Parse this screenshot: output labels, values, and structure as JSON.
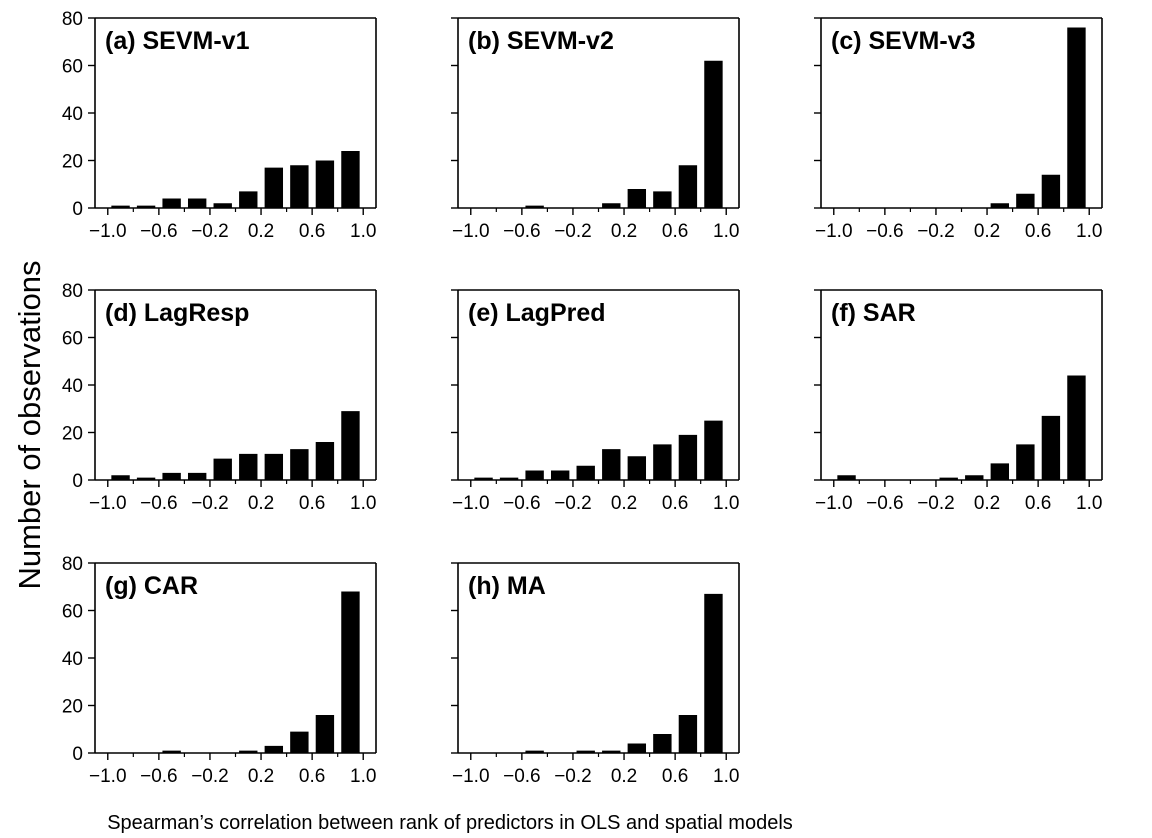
{
  "ylabel": "Number of observations",
  "xlabel": "Spearman’s correlation between rank of predictors in OLS and spatial models",
  "colors": {
    "bar": "#000000",
    "axis": "#000000",
    "background": "#ffffff"
  },
  "chart_data": [
    {
      "type": "bar",
      "title": "(a) SEVM-v1",
      "x": [
        -0.9,
        -0.7,
        -0.5,
        -0.3,
        -0.1,
        0.1,
        0.3,
        0.5,
        0.7,
        0.9
      ],
      "values": [
        1,
        1,
        4,
        4,
        2,
        7,
        17,
        18,
        20,
        24
      ],
      "xlim": [
        -1.1,
        1.1
      ],
      "ylim": [
        0,
        80
      ],
      "xticks": [
        -1.0,
        -0.6,
        -0.2,
        0.2,
        0.6,
        1.0
      ],
      "xtick_labels": [
        "−1.0",
        "−0.6",
        "−0.2",
        "0.2",
        "0.6",
        "1.0"
      ],
      "yticks": [
        0,
        20,
        40,
        60,
        80
      ],
      "ytick_labels": [
        "0",
        "20",
        "40",
        "60",
        "80"
      ]
    },
    {
      "type": "bar",
      "title": "(b) SEVM-v2",
      "x": [
        -0.9,
        -0.7,
        -0.5,
        -0.3,
        -0.1,
        0.1,
        0.3,
        0.5,
        0.7,
        0.9
      ],
      "values": [
        0,
        0,
        1,
        0,
        0,
        2,
        8,
        7,
        18,
        62
      ],
      "xlim": [
        -1.1,
        1.1
      ],
      "ylim": [
        0,
        80
      ],
      "xticks": [
        -1.0,
        -0.6,
        -0.2,
        0.2,
        0.6,
        1.0
      ],
      "xtick_labels": [
        "−1.0",
        "−0.6",
        "−0.2",
        "0.2",
        "0.6",
        "1.0"
      ],
      "yticks": [
        0,
        20,
        40,
        60,
        80
      ],
      "ytick_labels": []
    },
    {
      "type": "bar",
      "title": "(c) SEVM-v3",
      "x": [
        -0.9,
        -0.7,
        -0.5,
        -0.3,
        -0.1,
        0.1,
        0.3,
        0.5,
        0.7,
        0.9
      ],
      "values": [
        0,
        0,
        0,
        0,
        0,
        0,
        2,
        6,
        14,
        76
      ],
      "xlim": [
        -1.1,
        1.1
      ],
      "ylim": [
        0,
        80
      ],
      "xticks": [
        -1.0,
        -0.6,
        -0.2,
        0.2,
        0.6,
        1.0
      ],
      "xtick_labels": [
        "−1.0",
        "−0.6",
        "−0.2",
        "0.2",
        "0.6",
        "1.0"
      ],
      "yticks": [
        0,
        20,
        40,
        60,
        80
      ],
      "ytick_labels": []
    },
    {
      "type": "bar",
      "title": "(d) LagResp",
      "x": [
        -0.9,
        -0.7,
        -0.5,
        -0.3,
        -0.1,
        0.1,
        0.3,
        0.5,
        0.7,
        0.9
      ],
      "values": [
        2,
        1,
        3,
        3,
        9,
        11,
        11,
        13,
        16,
        29
      ],
      "xlim": [
        -1.1,
        1.1
      ],
      "ylim": [
        0,
        80
      ],
      "xticks": [
        -1.0,
        -0.6,
        -0.2,
        0.2,
        0.6,
        1.0
      ],
      "xtick_labels": [
        "−1.0",
        "−0.6",
        "−0.2",
        "0.2",
        "0.6",
        "1.0"
      ],
      "yticks": [
        0,
        20,
        40,
        60,
        80
      ],
      "ytick_labels": [
        "0",
        "20",
        "40",
        "60",
        "80"
      ]
    },
    {
      "type": "bar",
      "title": "(e) LagPred",
      "x": [
        -0.9,
        -0.7,
        -0.5,
        -0.3,
        -0.1,
        0.1,
        0.3,
        0.5,
        0.7,
        0.9
      ],
      "values": [
        1,
        1,
        4,
        4,
        6,
        13,
        10,
        15,
        19,
        25
      ],
      "xlim": [
        -1.1,
        1.1
      ],
      "ylim": [
        0,
        80
      ],
      "xticks": [
        -1.0,
        -0.6,
        -0.2,
        0.2,
        0.6,
        1.0
      ],
      "xtick_labels": [
        "−1.0",
        "−0.6",
        "−0.2",
        "0.2",
        "0.6",
        "1.0"
      ],
      "yticks": [
        0,
        20,
        40,
        60,
        80
      ],
      "ytick_labels": []
    },
    {
      "type": "bar",
      "title": "(f) SAR",
      "x": [
        -0.9,
        -0.7,
        -0.5,
        -0.3,
        -0.1,
        0.1,
        0.3,
        0.5,
        0.7,
        0.9
      ],
      "values": [
        2,
        0,
        0,
        0,
        1,
        2,
        7,
        15,
        27,
        44
      ],
      "xlim": [
        -1.1,
        1.1
      ],
      "ylim": [
        0,
        80
      ],
      "xticks": [
        -1.0,
        -0.6,
        -0.2,
        0.2,
        0.6,
        1.0
      ],
      "xtick_labels": [
        "−1.0",
        "−0.6",
        "−0.2",
        "0.2",
        "0.6",
        "1.0"
      ],
      "yticks": [
        0,
        20,
        40,
        60,
        80
      ],
      "ytick_labels": []
    },
    {
      "type": "bar",
      "title": "(g) CAR",
      "x": [
        -0.9,
        -0.7,
        -0.5,
        -0.3,
        -0.1,
        0.1,
        0.3,
        0.5,
        0.7,
        0.9
      ],
      "values": [
        0,
        0,
        1,
        0,
        0,
        1,
        3,
        9,
        16,
        68
      ],
      "xlim": [
        -1.1,
        1.1
      ],
      "ylim": [
        0,
        80
      ],
      "xticks": [
        -1.0,
        -0.6,
        -0.2,
        0.2,
        0.6,
        1.0
      ],
      "xtick_labels": [
        "−1.0",
        "−0.6",
        "−0.2",
        "0.2",
        "0.6",
        "1.0"
      ],
      "yticks": [
        0,
        20,
        40,
        60,
        80
      ],
      "ytick_labels": [
        "0",
        "20",
        "40",
        "60",
        "80"
      ]
    },
    {
      "type": "bar",
      "title": "(h) MA",
      "x": [
        -0.9,
        -0.7,
        -0.5,
        -0.3,
        -0.1,
        0.1,
        0.3,
        0.5,
        0.7,
        0.9
      ],
      "values": [
        0,
        0,
        1,
        0,
        1,
        1,
        4,
        8,
        16,
        67
      ],
      "xlim": [
        -1.1,
        1.1
      ],
      "ylim": [
        0,
        80
      ],
      "xticks": [
        -1.0,
        -0.6,
        -0.2,
        0.2,
        0.6,
        1.0
      ],
      "xtick_labels": [
        "−1.0",
        "−0.6",
        "−0.2",
        "0.2",
        "0.6",
        "1.0"
      ],
      "yticks": [
        0,
        20,
        40,
        60,
        80
      ],
      "ytick_labels": []
    }
  ]
}
